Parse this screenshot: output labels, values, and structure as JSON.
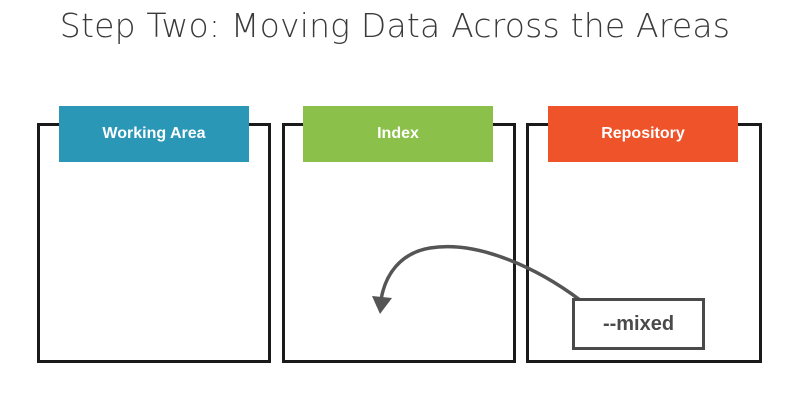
{
  "title": "Step Two: Moving Data Across the Areas",
  "areas": [
    {
      "label": "Working Area",
      "color": "#2a97b6"
    },
    {
      "label": "Index",
      "color": "#8bc04a"
    },
    {
      "label": "Repository",
      "color": "#ee532a"
    }
  ],
  "option": {
    "label": "--mixed",
    "from": "Repository",
    "to": "Index"
  },
  "colors": {
    "title": "#3a3a3a",
    "border": "#1a1a1a",
    "arrow": "#555555"
  }
}
